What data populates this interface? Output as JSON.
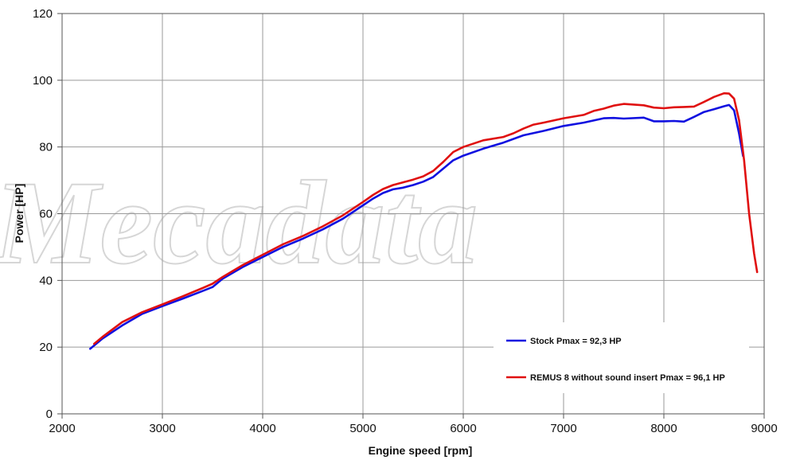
{
  "watermark": "Mecadata",
  "chart_data": {
    "type": "line",
    "title": "",
    "xlabel": "Engine speed [rpm]",
    "ylabel": "Power [HP]",
    "xlim": [
      2000,
      9000
    ],
    "ylim": [
      0,
      120
    ],
    "xticks": [
      2000,
      3000,
      4000,
      5000,
      6000,
      7000,
      8000,
      9000
    ],
    "yticks": [
      0,
      20,
      40,
      60,
      80,
      100,
      120
    ],
    "grid": true,
    "legend_position": "bottom-right",
    "series": [
      {
        "name": "Stock Pmax = 92,3 HP",
        "color": "#1010e0",
        "points": [
          [
            2280,
            19.5
          ],
          [
            2400,
            22.5
          ],
          [
            2600,
            26.5
          ],
          [
            2800,
            30
          ],
          [
            3000,
            32.3
          ],
          [
            3200,
            34.5
          ],
          [
            3400,
            36.8
          ],
          [
            3500,
            38
          ],
          [
            3600,
            40.5
          ],
          [
            3800,
            44
          ],
          [
            4000,
            47
          ],
          [
            4200,
            50
          ],
          [
            4400,
            52.5
          ],
          [
            4600,
            55.3
          ],
          [
            4800,
            58.5
          ],
          [
            5000,
            62.5
          ],
          [
            5100,
            64.5
          ],
          [
            5200,
            66.2
          ],
          [
            5300,
            67.3
          ],
          [
            5400,
            67.8
          ],
          [
            5500,
            68.6
          ],
          [
            5600,
            69.6
          ],
          [
            5700,
            71
          ],
          [
            5800,
            73.5
          ],
          [
            5900,
            76
          ],
          [
            6000,
            77.4
          ],
          [
            6200,
            79.5
          ],
          [
            6400,
            81.3
          ],
          [
            6600,
            83.5
          ],
          [
            6800,
            84.8
          ],
          [
            7000,
            86.3
          ],
          [
            7200,
            87.3
          ],
          [
            7400,
            88.6
          ],
          [
            7500,
            88.7
          ],
          [
            7600,
            88.5
          ],
          [
            7800,
            88.8
          ],
          [
            7900,
            87.7
          ],
          [
            8000,
            87.7
          ],
          [
            8100,
            87.8
          ],
          [
            8200,
            87.6
          ],
          [
            8300,
            89
          ],
          [
            8400,
            90.5
          ],
          [
            8500,
            91.3
          ],
          [
            8600,
            92.2
          ],
          [
            8650,
            92.6
          ],
          [
            8700,
            91
          ],
          [
            8750,
            84
          ],
          [
            8790,
            77.3
          ]
        ]
      },
      {
        "name": "REMUS 8 without sound insert Pmax =  96,1 HP",
        "color": "#e01010",
        "points": [
          [
            2320,
            21
          ],
          [
            2400,
            23
          ],
          [
            2600,
            27.5
          ],
          [
            2800,
            30.5
          ],
          [
            3000,
            32.8
          ],
          [
            3200,
            35.2
          ],
          [
            3400,
            37.7
          ],
          [
            3500,
            39
          ],
          [
            3600,
            41
          ],
          [
            3800,
            44.6
          ],
          [
            4000,
            47.7
          ],
          [
            4200,
            50.8
          ],
          [
            4400,
            53.3
          ],
          [
            4600,
            56.2
          ],
          [
            4800,
            59.5
          ],
          [
            5000,
            63.5
          ],
          [
            5100,
            65.6
          ],
          [
            5200,
            67.4
          ],
          [
            5300,
            68.6
          ],
          [
            5400,
            69.4
          ],
          [
            5500,
            70.2
          ],
          [
            5600,
            71.2
          ],
          [
            5700,
            72.8
          ],
          [
            5800,
            75.5
          ],
          [
            5900,
            78.5
          ],
          [
            6000,
            80
          ],
          [
            6200,
            82
          ],
          [
            6400,
            83
          ],
          [
            6500,
            84.1
          ],
          [
            6600,
            85.5
          ],
          [
            6700,
            86.7
          ],
          [
            6800,
            87.3
          ],
          [
            7000,
            88.6
          ],
          [
            7200,
            89.6
          ],
          [
            7300,
            90.8
          ],
          [
            7400,
            91.5
          ],
          [
            7500,
            92.4
          ],
          [
            7600,
            92.9
          ],
          [
            7800,
            92.5
          ],
          [
            7900,
            91.8
          ],
          [
            8000,
            91.6
          ],
          [
            8100,
            91.9
          ],
          [
            8200,
            92
          ],
          [
            8300,
            92.1
          ],
          [
            8400,
            93.5
          ],
          [
            8500,
            95
          ],
          [
            8600,
            96.1
          ],
          [
            8650,
            96
          ],
          [
            8700,
            94.5
          ],
          [
            8750,
            88
          ],
          [
            8800,
            76
          ],
          [
            8850,
            60
          ],
          [
            8900,
            48
          ],
          [
            8930,
            42.5
          ]
        ]
      }
    ]
  }
}
